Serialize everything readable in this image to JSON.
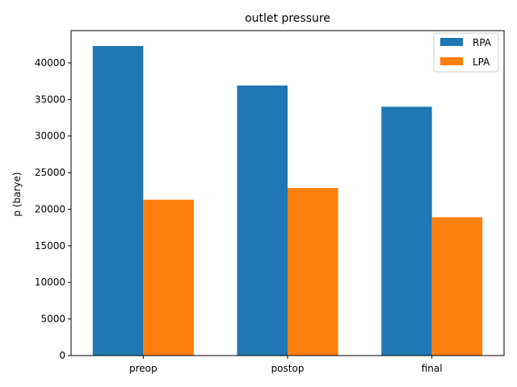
{
  "chart_data": {
    "type": "bar",
    "title": "outlet pressure",
    "xlabel": "",
    "ylabel": "p (barye)",
    "categories": [
      "preop",
      "postop",
      "final"
    ],
    "series": [
      {
        "name": "RPA",
        "color": "#1f77b4",
        "values": [
          42300,
          36900,
          34000
        ]
      },
      {
        "name": "LPA",
        "color": "#ff7f0e",
        "values": [
          21300,
          22900,
          18900
        ]
      }
    ],
    "yticks": [
      0,
      5000,
      10000,
      15000,
      20000,
      25000,
      30000,
      35000,
      40000
    ],
    "ylim": [
      0,
      44400
    ],
    "grid": false,
    "legend_position": "top-right"
  }
}
